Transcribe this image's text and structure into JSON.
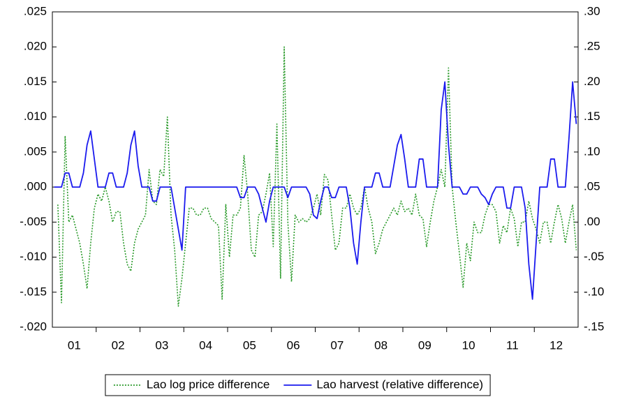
{
  "chart_data": {
    "type": "line",
    "categories": [
      null,
      null,
      null,
      null,
      null,
      null,
      "01",
      null,
      null,
      null,
      null,
      null,
      null,
      null,
      null,
      null,
      null,
      null,
      "02",
      null,
      null,
      null,
      null,
      null,
      null,
      null,
      null,
      null,
      null,
      null,
      "03",
      null,
      null,
      null,
      null,
      null,
      null,
      null,
      null,
      null,
      null,
      null,
      "04",
      null,
      null,
      null,
      null,
      null,
      null,
      null,
      null,
      null,
      null,
      null,
      "05",
      null,
      null,
      null,
      null,
      null,
      null,
      null,
      null,
      null,
      null,
      null,
      "06",
      null,
      null,
      null,
      null,
      null,
      null,
      null,
      null,
      null,
      null,
      null,
      "07",
      null,
      null,
      null,
      null,
      null,
      null,
      null,
      null,
      null,
      null,
      null,
      "08",
      null,
      null,
      null,
      null,
      null,
      null,
      null,
      null,
      null,
      null,
      null,
      "09",
      null,
      null,
      null,
      null,
      null,
      null,
      null,
      null,
      null,
      null,
      null,
      "10",
      null,
      null,
      null,
      null,
      null,
      null,
      null,
      null,
      null,
      null,
      null,
      "11",
      null,
      null,
      null,
      null,
      null,
      null,
      null,
      null,
      null,
      null,
      null,
      "12",
      null,
      null,
      null,
      null,
      null
    ],
    "series": [
      {
        "name": "Lao log price difference",
        "color": "#2a9a2a",
        "line_style": "dotted",
        "values": [
          null,
          -0.0025,
          -0.0165,
          0.0073,
          -0.005,
          -0.004,
          -0.006,
          -0.008,
          -0.011,
          -0.0145,
          -0.008,
          -0.003,
          -0.001,
          -0.002,
          0.0,
          -0.002,
          -0.005,
          -0.0035,
          -0.0035,
          -0.008,
          -0.011,
          -0.012,
          -0.008,
          -0.006,
          -0.005,
          -0.004,
          0.0025,
          -0.002,
          -0.0025,
          0.0025,
          0.0015,
          0.01,
          -0.004,
          -0.009,
          -0.017,
          -0.013,
          -0.008,
          -0.003,
          -0.003,
          -0.004,
          -0.004,
          -0.003,
          -0.003,
          -0.0045,
          -0.005,
          -0.0055,
          -0.016,
          -0.0025,
          -0.01,
          -0.004,
          -0.004,
          -0.003,
          0.0045,
          -0.001,
          -0.009,
          -0.01,
          -0.004,
          -0.0035,
          -0.001,
          0.002,
          -0.0085,
          0.009,
          -0.013,
          0.02,
          -0.005,
          -0.0135,
          -0.004,
          -0.005,
          -0.0045,
          -0.005,
          -0.0045,
          -0.003,
          -0.001,
          -0.004,
          0.0018,
          0.001,
          -0.004,
          -0.009,
          -0.008,
          -0.003,
          -0.003,
          -0.001,
          -0.003,
          -0.004,
          -0.003,
          0.0,
          -0.003,
          -0.005,
          -0.0095,
          -0.008,
          -0.006,
          -0.005,
          -0.004,
          -0.003,
          -0.004,
          -0.002,
          -0.0035,
          -0.003,
          -0.004,
          -0.001,
          -0.004,
          -0.0045,
          -0.0085,
          -0.005,
          -0.002,
          0.0,
          0.0025,
          0.0,
          0.017,
          0.0,
          -0.005,
          -0.0095,
          -0.0143,
          -0.008,
          -0.0105,
          -0.005,
          -0.0065,
          -0.0065,
          -0.004,
          -0.0025,
          -0.0025,
          -0.0035,
          -0.008,
          -0.0055,
          -0.0065,
          -0.003,
          -0.0045,
          -0.0085,
          -0.005,
          -0.005,
          -0.002,
          -0.0045,
          -0.006,
          -0.008,
          -0.005,
          -0.005,
          -0.008,
          -0.005,
          -0.0025,
          -0.0045,
          -0.008,
          -0.005,
          -0.0025,
          -0.009
        ]
      },
      {
        "name": "Lao harvest (relative difference)",
        "color": "#1a1aee",
        "axis": "y2",
        "line_style": "solid",
        "values": [
          0.05,
          0.05,
          0.05,
          0.07,
          0.07,
          0.05,
          0.05,
          0.05,
          0.07,
          0.11,
          0.13,
          0.09,
          0.05,
          0.05,
          0.05,
          0.07,
          0.07,
          0.05,
          0.05,
          0.05,
          0.07,
          0.11,
          0.13,
          0.08,
          0.05,
          0.05,
          0.05,
          0.03,
          0.03,
          0.05,
          0.05,
          0.05,
          0.05,
          0.02,
          -0.01,
          -0.04,
          0.05,
          0.05,
          0.05,
          0.05,
          0.05,
          0.05,
          0.05,
          0.05,
          0.05,
          0.05,
          0.05,
          0.05,
          0.05,
          0.05,
          0.05,
          0.035,
          0.035,
          0.05,
          0.05,
          0.05,
          0.04,
          0.02,
          0.0,
          0.03,
          0.05,
          0.05,
          0.05,
          0.05,
          0.035,
          0.05,
          0.05,
          0.05,
          0.05,
          0.05,
          0.04,
          0.01,
          0.005,
          0.03,
          0.05,
          0.05,
          0.035,
          0.035,
          0.05,
          0.05,
          0.05,
          0.02,
          -0.03,
          -0.06,
          0.0,
          0.05,
          0.05,
          0.05,
          0.07,
          0.07,
          0.05,
          0.05,
          0.05,
          0.08,
          0.11,
          0.125,
          0.09,
          0.05,
          0.05,
          0.05,
          0.09,
          0.09,
          0.05,
          0.05,
          0.05,
          0.05,
          0.16,
          0.2,
          0.11,
          0.05,
          0.05,
          0.05,
          0.04,
          0.04,
          0.05,
          0.05,
          0.05,
          0.04,
          0.035,
          0.025,
          0.04,
          0.05,
          0.05,
          0.05,
          0.02,
          0.02,
          0.05,
          0.05,
          0.05,
          0.02,
          -0.06,
          -0.11,
          -0.03,
          0.05,
          0.05,
          0.05,
          0.09,
          0.09,
          0.05,
          0.05,
          0.05,
          0.12,
          0.2,
          0.14
        ]
      }
    ],
    "ylim": [
      -0.02,
      0.025
    ],
    "yticks": [
      {
        "value": -0.02,
        "label": "-.020"
      },
      {
        "value": -0.015,
        "label": "-.015"
      },
      {
        "value": -0.01,
        "label": "-.010"
      },
      {
        "value": -0.005,
        "label": "-.005"
      },
      {
        "value": 0,
        "label": ".000"
      },
      {
        "value": 0.005,
        "label": ".005"
      },
      {
        "value": 0.01,
        "label": ".010"
      },
      {
        "value": 0.015,
        "label": ".015"
      },
      {
        "value": 0.02,
        "label": ".020"
      },
      {
        "value": 0.025,
        "label": ".025"
      }
    ],
    "y2lim": [
      -0.15,
      0.3
    ],
    "y2ticks": [
      {
        "value": -0.15,
        "label": "-.15"
      },
      {
        "value": -0.1,
        "label": "-.10"
      },
      {
        "value": -0.05,
        "label": "-.05"
      },
      {
        "value": 0,
        "label": ".00"
      },
      {
        "value": 0.05,
        "label": ".05"
      },
      {
        "value": 0.1,
        "label": ".10"
      },
      {
        "value": 0.15,
        "label": ".15"
      },
      {
        "value": 0.2,
        "label": ".20"
      },
      {
        "value": 0.25,
        "label": ".25"
      },
      {
        "value": 0.3,
        "label": ".30"
      }
    ],
    "legend": "bottom"
  }
}
